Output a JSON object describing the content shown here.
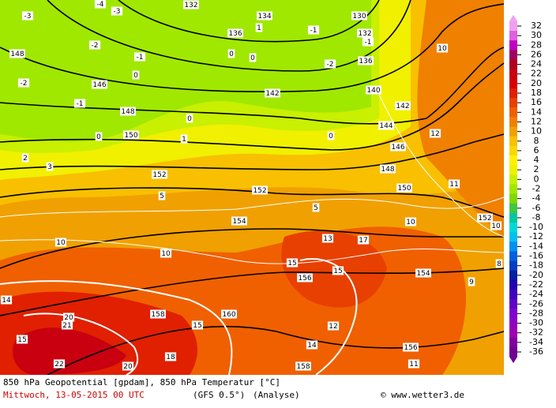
{
  "footer": {
    "title": "850 hPa Geopotential [gpdam], 850 hPa Temperatur [°C]",
    "date": "Mittwoch, 13-05-2015  00 UTC",
    "model": "(GFS 0.5°)",
    "run": "(Analyse)",
    "credit": "© www.wetter3.de"
  },
  "legend": {
    "values": [
      "32",
      "30",
      "28",
      "26",
      "24",
      "22",
      "20",
      "18",
      "16",
      "14",
      "12",
      "10",
      "8",
      "6",
      "4",
      "2",
      "0",
      "-2",
      "-4",
      "-6",
      "-8",
      "-10",
      "-12",
      "-14",
      "-16",
      "-18",
      "-20",
      "-22",
      "-24",
      "-26",
      "-28",
      "-30",
      "-32",
      "-34",
      "-36"
    ],
    "colors": [
      "#f0a0f0",
      "#e060e0",
      "#c000c0",
      "#a00060",
      "#b00020",
      "#c80010",
      "#d80000",
      "#e02000",
      "#e84000",
      "#f06000",
      "#f08000",
      "#f0a000",
      "#f8c000",
      "#f8d800",
      "#fff000",
      "#f0f000",
      "#c8f000",
      "#a0e800",
      "#80d800",
      "#40c840",
      "#00c8a0",
      "#00d8d8",
      "#00c0f0",
      "#0090f0",
      "#0060e0",
      "#0040c0",
      "#0020a0",
      "#2000b0",
      "#4000c0",
      "#6000c8",
      "#8000d0",
      "#9000c0",
      "#a000b0",
      "#8000a0",
      "#700090"
    ]
  },
  "map_labels": [
    "-3",
    "-4",
    "-3",
    "132",
    "134",
    "1",
    "130",
    "136",
    "-1",
    "132",
    "148",
    "-2",
    "-1",
    "0",
    "0",
    "-2",
    "-1",
    "136",
    "10",
    "-2",
    "-1",
    "146",
    "0",
    "142",
    "140",
    "142",
    "148",
    "0",
    "144",
    "150",
    "0",
    "1",
    "0",
    "12",
    "146",
    "2",
    "3",
    "152",
    "148",
    "11",
    "152",
    "150",
    "5",
    "5",
    "10",
    "154",
    "152",
    "10",
    "10",
    "10",
    "13",
    "17",
    "15",
    "156",
    "15",
    "154",
    "9",
    "8",
    "160",
    "14",
    "20",
    "158",
    "15",
    "21",
    "15",
    "18",
    "22",
    "20",
    "158",
    "11",
    "156",
    "14",
    "12"
  ]
}
